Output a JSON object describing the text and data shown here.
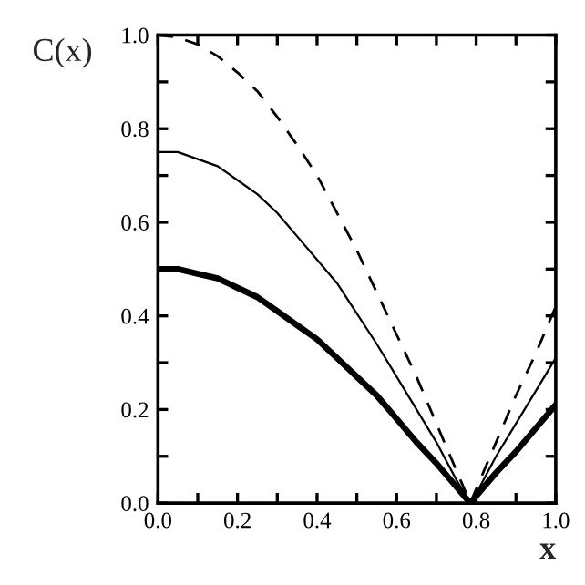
{
  "chart_data": {
    "type": "line",
    "xlabel": "x",
    "ylabel": "C(x)",
    "x": [
      0,
      0.05,
      0.1,
      0.15,
      0.2,
      0.25,
      0.3,
      0.35,
      0.4,
      0.45,
      0.5,
      0.55,
      0.6,
      0.65,
      0.7,
      0.75,
      0.785,
      0.8,
      0.85,
      0.9,
      0.95,
      1.0
    ],
    "series": [
      {
        "color": "#000000",
        "line_style": "solid",
        "values": [
          0.5,
          0.5,
          0.49,
          0.48,
          0.46,
          0.44,
          0.41,
          0.38,
          0.35,
          0.31,
          0.27,
          0.23,
          0.18,
          0.13,
          0.085,
          0.035,
          0.0,
          0.015,
          0.065,
          0.11,
          0.16,
          0.21
        ]
      },
      {
        "color": "#000000",
        "line_style": "solid",
        "values": [
          0.75,
          0.75,
          0.735,
          0.72,
          0.69,
          0.66,
          0.62,
          0.57,
          0.52,
          0.47,
          0.405,
          0.34,
          0.27,
          0.2,
          0.13,
          0.05,
          0.0,
          0.02,
          0.1,
          0.17,
          0.24,
          0.31
        ]
      },
      {
        "color": "#000000",
        "line_style": "dashed",
        "values": [
          1.0,
          0.995,
          0.98,
          0.955,
          0.92,
          0.88,
          0.825,
          0.765,
          0.7,
          0.62,
          0.54,
          0.45,
          0.36,
          0.27,
          0.17,
          0.07,
          0.0,
          0.03,
          0.13,
          0.23,
          0.32,
          0.42
        ]
      }
    ],
    "xlim": [
      0,
      1
    ],
    "ylim": [
      0,
      1
    ],
    "xticks": [
      {
        "value": 0,
        "label": "0.0"
      },
      {
        "value": 0.1,
        "label": null
      },
      {
        "value": 0.2,
        "label": "0.2"
      },
      {
        "value": 0.3,
        "label": null
      },
      {
        "value": 0.4,
        "label": "0.4"
      },
      {
        "value": 0.5,
        "label": null
      },
      {
        "value": 0.6,
        "label": "0.6"
      },
      {
        "value": 0.7,
        "label": null
      },
      {
        "value": 0.8,
        "label": "0.8"
      },
      {
        "value": 0.9,
        "label": null
      },
      {
        "value": 1,
        "label": "1.0"
      }
    ],
    "yticks": [
      {
        "value": 0,
        "label": "0.0"
      },
      {
        "value": 0.1,
        "label": null
      },
      {
        "value": 0.2,
        "label": "0.2"
      },
      {
        "value": 0.3,
        "label": null
      },
      {
        "value": 0.4,
        "label": "0.4"
      },
      {
        "value": 0.5,
        "label": null
      },
      {
        "value": 0.6,
        "label": "0.6"
      },
      {
        "value": 0.7,
        "label": null
      },
      {
        "value": 0.8,
        "label": "0.8"
      },
      {
        "value": 0.9,
        "label": null
      },
      {
        "value": 1,
        "label": "1.0"
      }
    ],
    "grid": false,
    "legend": false
  }
}
